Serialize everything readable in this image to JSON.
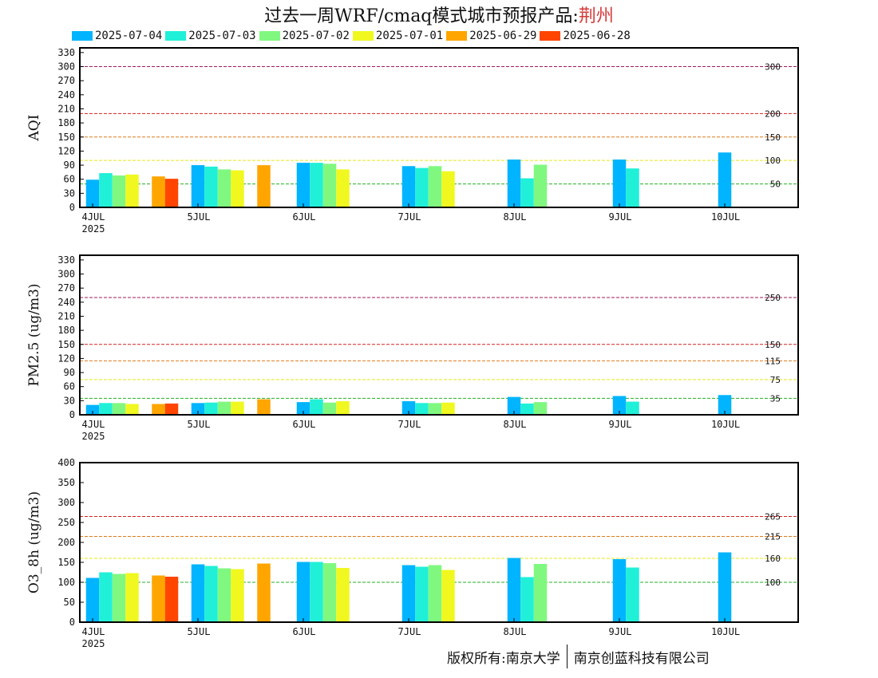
{
  "title": {
    "main": "过去一周WRF/cmaq模式城市预报产品:",
    "city": "荆州"
  },
  "footer": {
    "left": "版权所有:南京大学",
    "right": "南京创蓝科技有限公司"
  },
  "chart_data": [
    {
      "type": "bar",
      "ylabel": "AQI",
      "ylim": [
        0,
        340
      ],
      "yticks": [
        0,
        30,
        60,
        90,
        120,
        150,
        180,
        210,
        240,
        270,
        300,
        330
      ],
      "x_tick_labels": [
        "4JUL",
        "5JUL",
        "6JUL",
        "7JUL",
        "8JUL",
        "9JUL",
        "10JUL"
      ],
      "x_year_label": "2025",
      "thresholds": [
        {
          "value": 300,
          "label": "300",
          "color": "#a01a5a"
        },
        {
          "value": 200,
          "label": "200",
          "color": "#d62020"
        },
        {
          "value": 150,
          "label": "150",
          "color": "#e07a1a"
        },
        {
          "value": 100,
          "label": "100",
          "color": "#e8e81a"
        },
        {
          "value": 50,
          "label": "50",
          "color": "#22b022"
        }
      ],
      "series": [
        {
          "name": "2025-07-04",
          "color": "#00b4ff",
          "days": [
            0,
            1,
            2,
            3,
            4,
            5,
            6
          ],
          "values": [
            59,
            90,
            95,
            88,
            102,
            102,
            117
          ]
        },
        {
          "name": "2025-07-03",
          "color": "#20f0d8",
          "days": [
            0,
            1,
            2,
            3,
            4,
            5
          ],
          "values": [
            73,
            87,
            95,
            84,
            62,
            83
          ]
        },
        {
          "name": "2025-07-02",
          "color": "#80f880",
          "days": [
            0,
            1,
            2,
            3,
            4
          ],
          "values": [
            68,
            81,
            93,
            88,
            91
          ]
        },
        {
          "name": "2025-07-01",
          "color": "#f0f820",
          "days": [
            0,
            1,
            2,
            3
          ],
          "values": [
            70,
            79,
            81,
            77
          ]
        },
        {
          "name": "2025-06-29",
          "color": "#ffa500",
          "days": [
            0,
            1
          ],
          "values": [
            66,
            90
          ]
        },
        {
          "name": "2025-06-28",
          "color": "#ff4500",
          "days": [
            0
          ],
          "values": [
            61
          ]
        }
      ]
    },
    {
      "type": "bar",
      "ylabel": "PM2.5 (ug/m3)",
      "ylim": [
        0,
        340
      ],
      "yticks": [
        0,
        30,
        60,
        90,
        120,
        150,
        180,
        210,
        240,
        270,
        300,
        330
      ],
      "x_tick_labels": [
        "4JUL",
        "5JUL",
        "6JUL",
        "7JUL",
        "8JUL",
        "9JUL",
        "10JUL"
      ],
      "x_year_label": "2025",
      "thresholds": [
        {
          "value": 250,
          "label": "250",
          "color": "#a01a5a"
        },
        {
          "value": 150,
          "label": "150",
          "color": "#d62020"
        },
        {
          "value": 115,
          "label": "115",
          "color": "#e07a1a"
        },
        {
          "value": 75,
          "label": "75",
          "color": "#e8e81a"
        },
        {
          "value": 35,
          "label": "35",
          "color": "#22b022"
        }
      ],
      "series": [
        {
          "name": "2025-07-04",
          "color": "#00b4ff",
          "days": [
            0,
            1,
            2,
            3,
            4,
            5,
            6
          ],
          "values": [
            21,
            25,
            27,
            29,
            38,
            40,
            42
          ]
        },
        {
          "name": "2025-07-03",
          "color": "#20f0d8",
          "days": [
            0,
            1,
            2,
            3,
            4,
            5
          ],
          "values": [
            25,
            26,
            33,
            25,
            24,
            28
          ]
        },
        {
          "name": "2025-07-02",
          "color": "#80f880",
          "days": [
            0,
            1,
            2,
            3,
            4
          ],
          "values": [
            25,
            28,
            26,
            25,
            27
          ]
        },
        {
          "name": "2025-07-01",
          "color": "#f0f820",
          "days": [
            0,
            1,
            2,
            3
          ],
          "values": [
            23,
            28,
            29,
            26
          ]
        },
        {
          "name": "2025-06-29",
          "color": "#ffa500",
          "days": [
            0,
            1
          ],
          "values": [
            23,
            33
          ]
        },
        {
          "name": "2025-06-28",
          "color": "#ff4500",
          "days": [
            0
          ],
          "values": [
            24
          ]
        }
      ]
    },
    {
      "type": "bar",
      "ylabel": "O3_8h (ug/m3)",
      "ylim": [
        0,
        400
      ],
      "yticks": [
        0,
        50,
        100,
        150,
        200,
        250,
        300,
        350,
        400
      ],
      "x_tick_labels": [
        "4JUL",
        "5JUL",
        "6JUL",
        "7JUL",
        "8JUL",
        "9JUL",
        "10JUL"
      ],
      "x_year_label": "2025",
      "thresholds": [
        {
          "value": 265,
          "label": "265",
          "color": "#d62020"
        },
        {
          "value": 215,
          "label": "215",
          "color": "#e07a1a"
        },
        {
          "value": 160,
          "label": "160",
          "color": "#e8e81a"
        },
        {
          "value": 100,
          "label": "100",
          "color": "#22b022"
        }
      ],
      "series": [
        {
          "name": "2025-07-04",
          "color": "#00b4ff",
          "days": [
            0,
            1,
            2,
            3,
            4,
            5,
            6
          ],
          "values": [
            111,
            145,
            151,
            143,
            161,
            158,
            175
          ]
        },
        {
          "name": "2025-07-03",
          "color": "#20f0d8",
          "days": [
            0,
            1,
            2,
            3,
            4,
            5
          ],
          "values": [
            125,
            141,
            151,
            139,
            113,
            137
          ]
        },
        {
          "name": "2025-07-02",
          "color": "#80f880",
          "days": [
            0,
            1,
            2,
            3,
            4
          ],
          "values": [
            121,
            135,
            148,
            143,
            146
          ]
        },
        {
          "name": "2025-07-01",
          "color": "#f0f820",
          "days": [
            0,
            1,
            2,
            3
          ],
          "values": [
            123,
            133,
            136,
            131
          ]
        },
        {
          "name": "2025-06-29",
          "color": "#ffa500",
          "days": [
            0,
            1
          ],
          "values": [
            117,
            147
          ]
        },
        {
          "name": "2025-06-28",
          "color": "#ff4500",
          "days": [
            0
          ],
          "values": [
            114
          ]
        }
      ]
    }
  ]
}
